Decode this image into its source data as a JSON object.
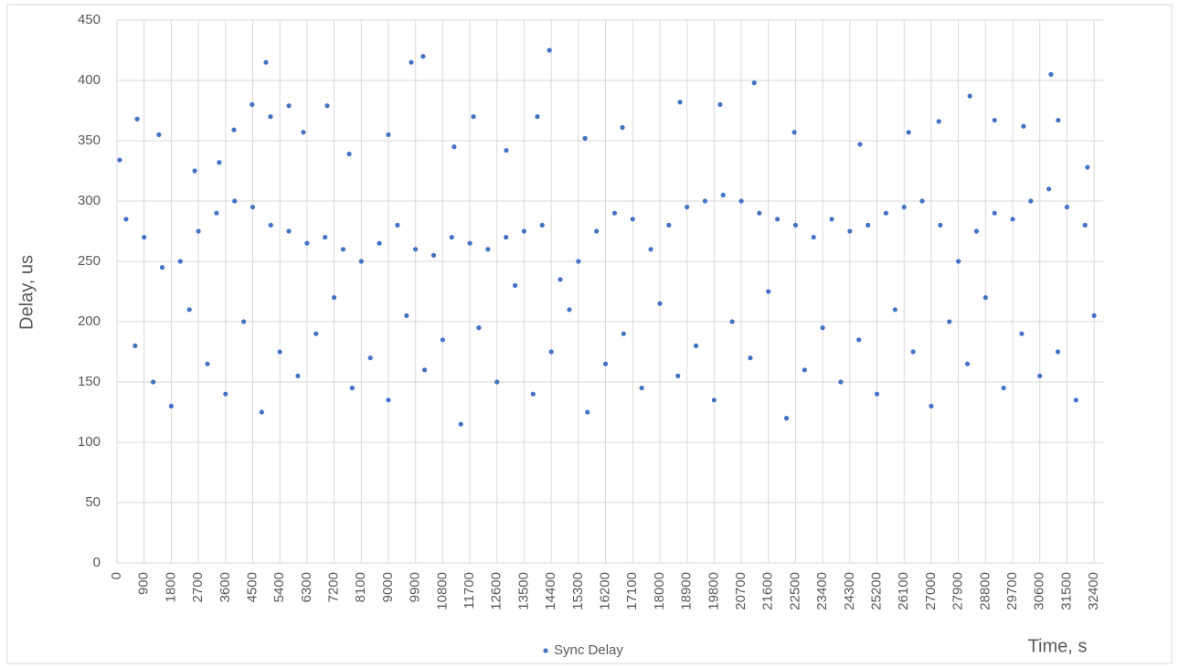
{
  "chart_data": {
    "type": "scatter",
    "x_label": "Time, s",
    "y_label": "Delay, us",
    "xlim": [
      0,
      32700
    ],
    "ylim": [
      0,
      450
    ],
    "xticks": [
      0,
      900,
      1800,
      2700,
      3600,
      4500,
      5400,
      6300,
      7200,
      8100,
      9000,
      9900,
      10800,
      11700,
      12600,
      13500,
      14400,
      15300,
      16200,
      17100,
      18000,
      18900,
      19800,
      20700,
      21600,
      22500,
      23400,
      24300,
      25200,
      26100,
      27000,
      27900,
      28800,
      29700,
      30600,
      31500,
      32400
    ],
    "yticks": [
      0,
      50,
      100,
      150,
      200,
      250,
      300,
      350,
      400,
      450
    ],
    "grid": true,
    "legend": "bottom",
    "series": [
      {
        "name": "Sync Delay",
        "color": "#4472c4",
        "x": [
          90,
          670,
          1390,
          2580,
          3390,
          3880,
          4480,
          4940,
          5090,
          5700,
          6180,
          6970,
          7700,
          9000,
          9760,
          10150,
          11180,
          11820,
          12910,
          13940,
          14340,
          15520,
          16760,
          18670,
          20000,
          21130,
          22460,
          24640,
          26250,
          27250,
          28280,
          29100,
          30060,
          30970,
          31210,
          32180,
          300,
          900,
          1500,
          2100,
          2700,
          3300,
          3900,
          4500,
          5100,
          5700,
          6300,
          6900,
          7500,
          8100,
          8700,
          9300,
          9900,
          10500,
          11100,
          11700,
          12300,
          12900,
          13500,
          14100,
          14700,
          15300,
          15900,
          16500,
          17100,
          17700,
          18300,
          18900,
          19500,
          20100,
          20700,
          21300,
          21900,
          22500,
          23100,
          23700,
          24300,
          24900,
          25500,
          26100,
          26700,
          27300,
          27900,
          28500,
          29100,
          29700,
          30300,
          30900,
          31500,
          32100,
          600,
          1200,
          1800,
          2400,
          3000,
          3600,
          4200,
          4800,
          5400,
          6000,
          6600,
          7200,
          7800,
          8400,
          9000,
          9600,
          10200,
          10800,
          11400,
          12000,
          12600,
          13200,
          13800,
          14400,
          15000,
          15600,
          16200,
          16800,
          17400,
          18000,
          18600,
          19200,
          19800,
          20400,
          21000,
          21600,
          22200,
          22800,
          23400,
          24000,
          24600,
          25200,
          25800,
          26400,
          27000,
          27600,
          28200,
          28800,
          29400,
          30000,
          30600,
          31200,
          31800,
          32400
        ],
        "values": [
          334,
          368,
          355,
          325,
          332,
          359,
          380,
          415,
          370,
          379,
          357,
          379,
          339,
          355,
          415,
          420,
          345,
          370,
          342,
          370,
          425,
          352,
          361,
          382,
          380,
          398,
          357,
          347,
          357,
          366,
          387,
          367,
          362,
          405,
          367,
          328,
          285,
          270,
          245,
          250,
          275,
          290,
          300,
          295,
          280,
          275,
          265,
          270,
          260,
          250,
          265,
          280,
          260,
          255,
          270,
          265,
          260,
          270,
          275,
          280,
          235,
          250,
          275,
          290,
          285,
          260,
          280,
          295,
          300,
          305,
          300,
          290,
          285,
          280,
          270,
          285,
          275,
          280,
          290,
          295,
          300,
          280,
          250,
          275,
          290,
          285,
          300,
          310,
          295,
          280,
          180,
          150,
          130,
          210,
          165,
          140,
          200,
          125,
          175,
          155,
          190,
          220,
          145,
          170,
          135,
          205,
          160,
          185,
          115,
          195,
          150,
          230,
          140,
          175,
          210,
          125,
          165,
          190,
          145,
          215,
          155,
          180,
          135,
          200,
          170,
          225,
          120,
          160,
          195,
          150,
          185,
          140,
          210,
          175,
          130,
          200,
          165,
          220,
          145,
          190,
          155,
          175,
          135,
          205
        ]
      }
    ]
  }
}
